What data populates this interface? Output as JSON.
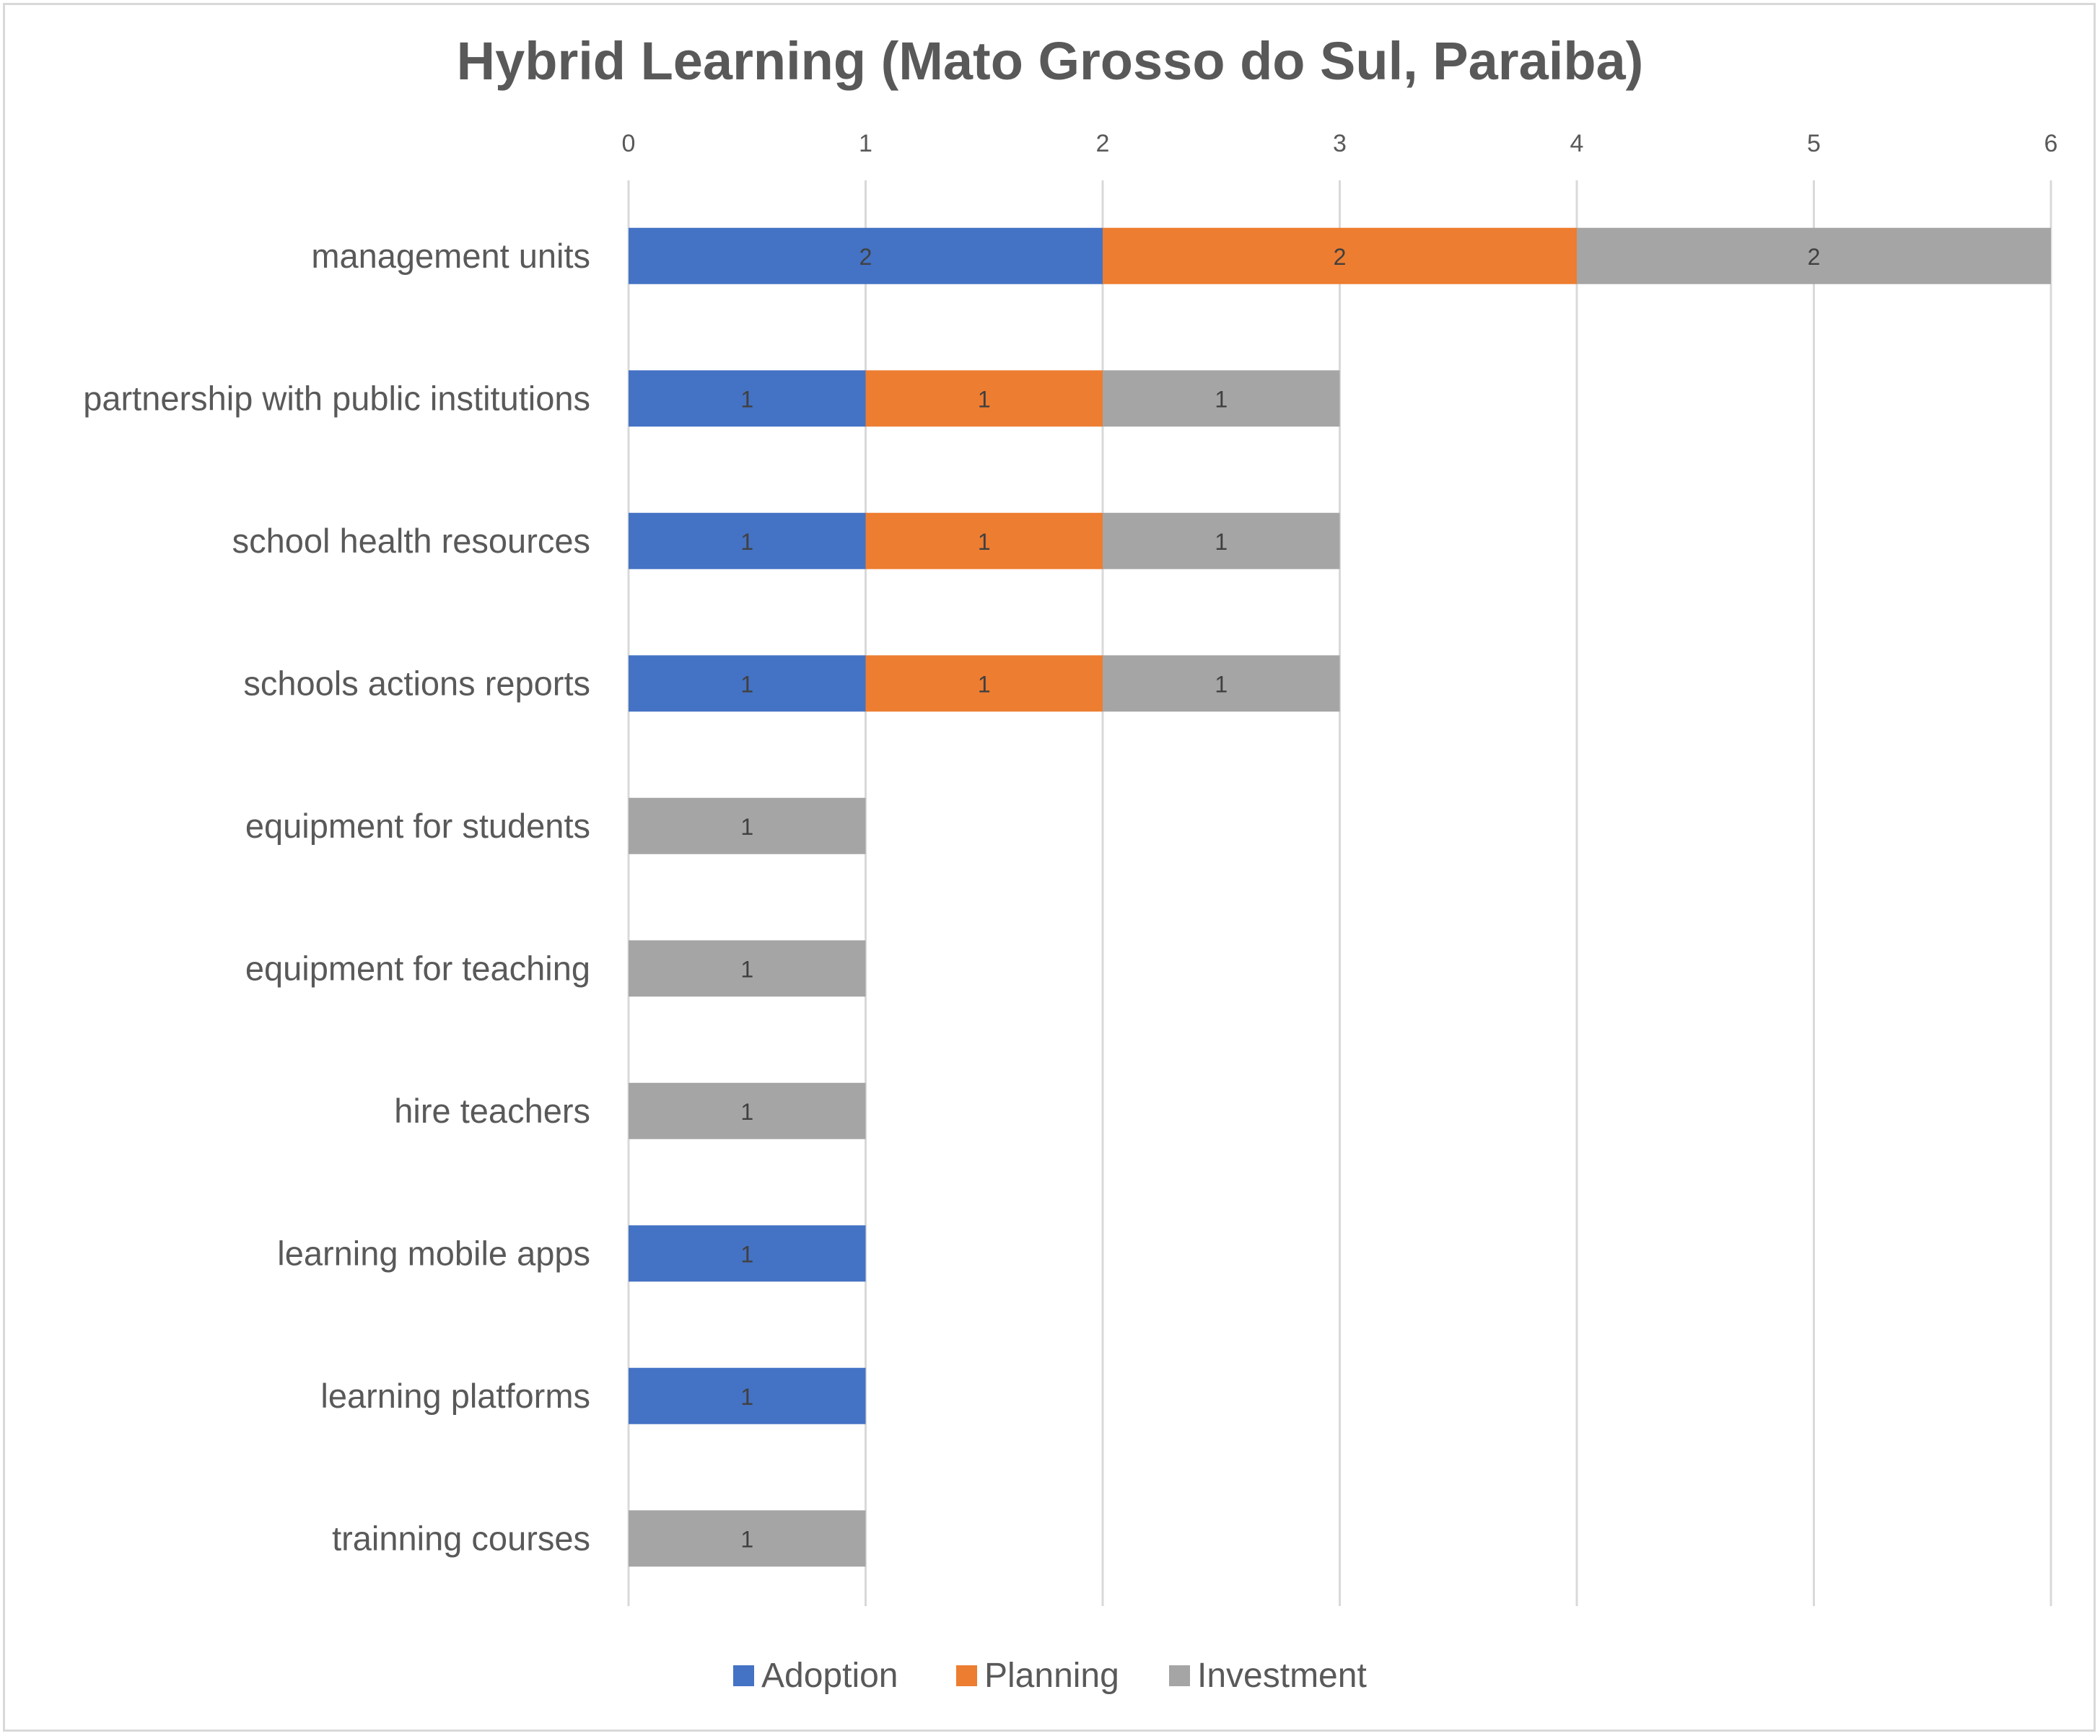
{
  "chart_data": {
    "type": "bar",
    "orientation": "horizontal",
    "stacked": true,
    "title": "Hybrid Learning (Mato Grosso do Sul, Paraiba)",
    "x_tick_labels": [
      "0",
      "1",
      "2",
      "3",
      "4",
      "5",
      "6"
    ],
    "grid": true,
    "legend_position": "bottom",
    "categories": [
      "management units",
      "partnership with public institutions",
      "school health resources",
      "schools actions reports",
      "equipment for students",
      "equipment for teaching",
      "hire teachers",
      "learning mobile apps",
      "learning platforms",
      "trainning courses"
    ],
    "series": [
      {
        "name": "Adoption",
        "color": "#4472c4",
        "values": [
          2,
          1,
          1,
          1,
          0,
          0,
          0,
          1,
          1,
          0
        ]
      },
      {
        "name": "Planning",
        "color": "#ed7d31",
        "values": [
          2,
          1,
          1,
          1,
          0,
          0,
          0,
          0,
          0,
          0
        ]
      },
      {
        "name": "Investment",
        "color": "#a5a5a5",
        "values": [
          2,
          1,
          1,
          1,
          1,
          1,
          1,
          0,
          0,
          1
        ]
      }
    ]
  }
}
